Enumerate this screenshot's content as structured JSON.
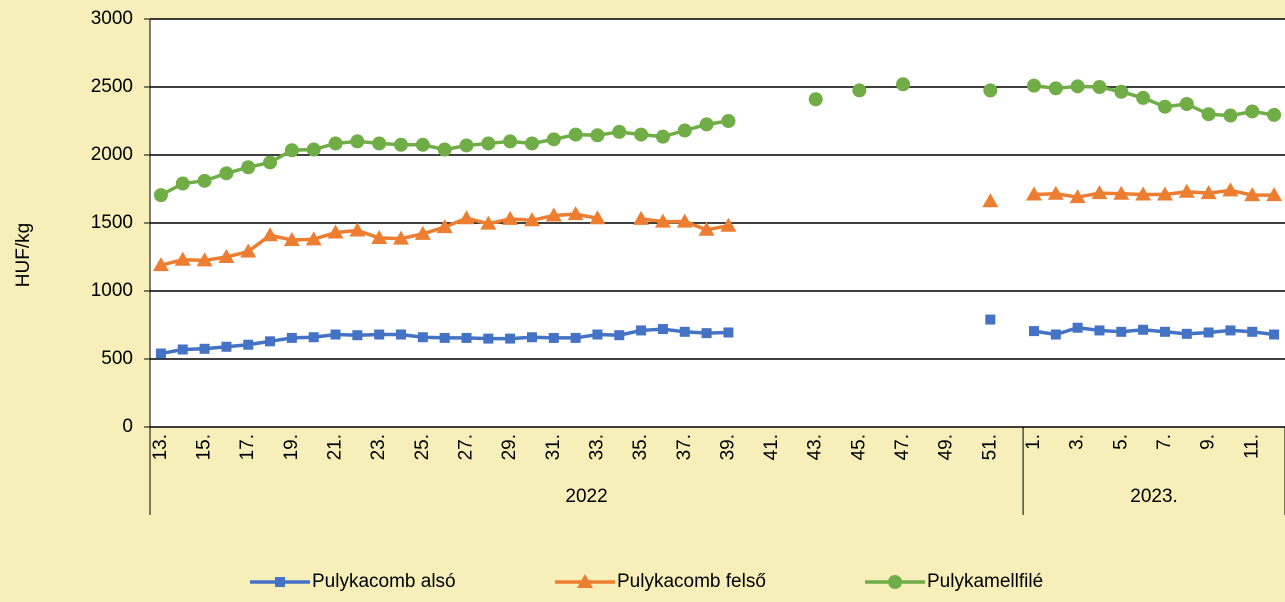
{
  "chart_data": {
    "type": "line",
    "y_label": "HUF/kg",
    "categories": [
      "13.",
      null,
      "15.",
      null,
      "17.",
      null,
      "19.",
      null,
      "21.",
      null,
      "23.",
      null,
      "25.",
      null,
      "27.",
      null,
      "29.",
      null,
      "31.",
      null,
      "33.",
      null,
      "35.",
      null,
      "37.",
      null,
      "39.",
      null,
      "41.",
      null,
      "43.",
      null,
      "45.",
      null,
      "47.",
      null,
      "49.",
      null,
      "51.",
      null,
      "1.",
      null,
      "3.",
      null,
      "5.",
      null,
      "7.",
      null,
      "9.",
      null,
      "11.",
      null
    ],
    "category_groups": [
      {
        "label": "2022",
        "span": 40
      },
      {
        "label": "2023.",
        "span": 12
      }
    ],
    "series": [
      {
        "name": "Pulykacomb alsó",
        "color": "#4472c4",
        "marker": "square",
        "values": [
          540,
          570,
          575,
          590,
          605,
          630,
          655,
          660,
          680,
          675,
          680,
          680,
          660,
          655,
          655,
          650,
          650,
          660,
          655,
          655,
          680,
          675,
          710,
          720,
          700,
          690,
          695,
          null,
          null,
          null,
          null,
          null,
          null,
          null,
          null,
          null,
          null,
          null,
          790,
          null,
          705,
          680,
          730,
          710,
          700,
          715,
          700,
          685,
          695,
          710,
          700,
          680
        ]
      },
      {
        "name": "Pulykacomb felső",
        "color": "#ed7d31",
        "marker": "triangle",
        "values": [
          1190,
          1230,
          1225,
          1250,
          1290,
          1410,
          1375,
          1380,
          1430,
          1445,
          1390,
          1385,
          1420,
          1470,
          1535,
          1495,
          1530,
          1520,
          1555,
          1565,
          1535,
          null,
          1530,
          1510,
          1510,
          1450,
          1480,
          null,
          null,
          null,
          null,
          null,
          null,
          null,
          null,
          null,
          null,
          null,
          1660,
          null,
          1710,
          1715,
          1690,
          1720,
          1715,
          1710,
          1710,
          1730,
          1720,
          1740,
          1705,
          1705
        ]
      },
      {
        "name": "Pulykamellfilé",
        "color": "#70ad47",
        "marker": "circle",
        "values": [
          1705,
          1790,
          1810,
          1865,
          1910,
          1945,
          2035,
          2040,
          2085,
          2100,
          2085,
          2075,
          2075,
          2040,
          2070,
          2085,
          2100,
          2085,
          2115,
          2150,
          2145,
          2170,
          2150,
          2135,
          2180,
          2225,
          2250,
          null,
          null,
          null,
          2410,
          null,
          2475,
          null,
          2520,
          null,
          null,
          null,
          2475,
          null,
          2510,
          2490,
          2505,
          2500,
          2465,
          2420,
          2355,
          2375,
          2300,
          2290,
          2320,
          2295
        ]
      }
    ],
    "ylim": [
      0,
      3000
    ],
    "yticks": [
      0,
      500,
      1000,
      1500,
      2000,
      2500,
      3000
    ],
    "grid": true,
    "legend": "bottom"
  }
}
